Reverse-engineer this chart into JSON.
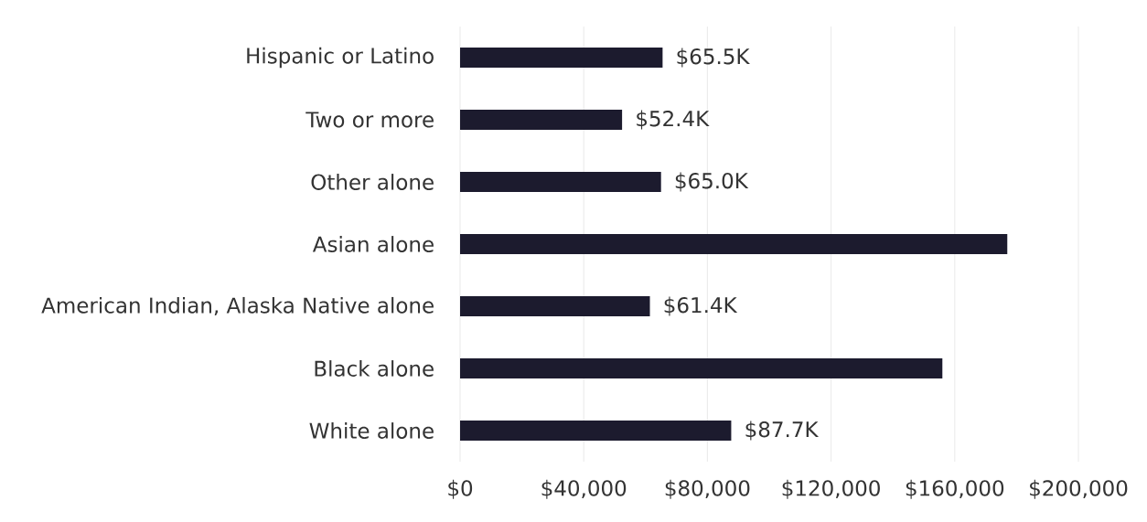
{
  "chart_data": {
    "type": "bar",
    "orientation": "horizontal",
    "categories": [
      "Hispanic or Latino",
      "Two or more",
      "Other alone",
      "Asian alone",
      "American Indian, Alaska Native alone",
      "Black alone",
      "White alone"
    ],
    "values": [
      65500,
      52400,
      65000,
      177000,
      61400,
      156000,
      87700
    ],
    "value_labels": [
      "$65.5K",
      "$52.4K",
      "$65.0K",
      null,
      "$61.4K",
      null,
      "$87.7K"
    ],
    "color": "#1c1b2e",
    "xlim": [
      0,
      200000
    ],
    "xticks": [
      {
        "value": 0,
        "label": "$0"
      },
      {
        "value": 40000,
        "label": "$40,000"
      },
      {
        "value": 80000,
        "label": "$80,000"
      },
      {
        "value": 120000,
        "label": "$120,000"
      },
      {
        "value": 160000,
        "label": "$160,000"
      },
      {
        "value": 200000,
        "label": "$200,000"
      }
    ],
    "grid": "x"
  }
}
